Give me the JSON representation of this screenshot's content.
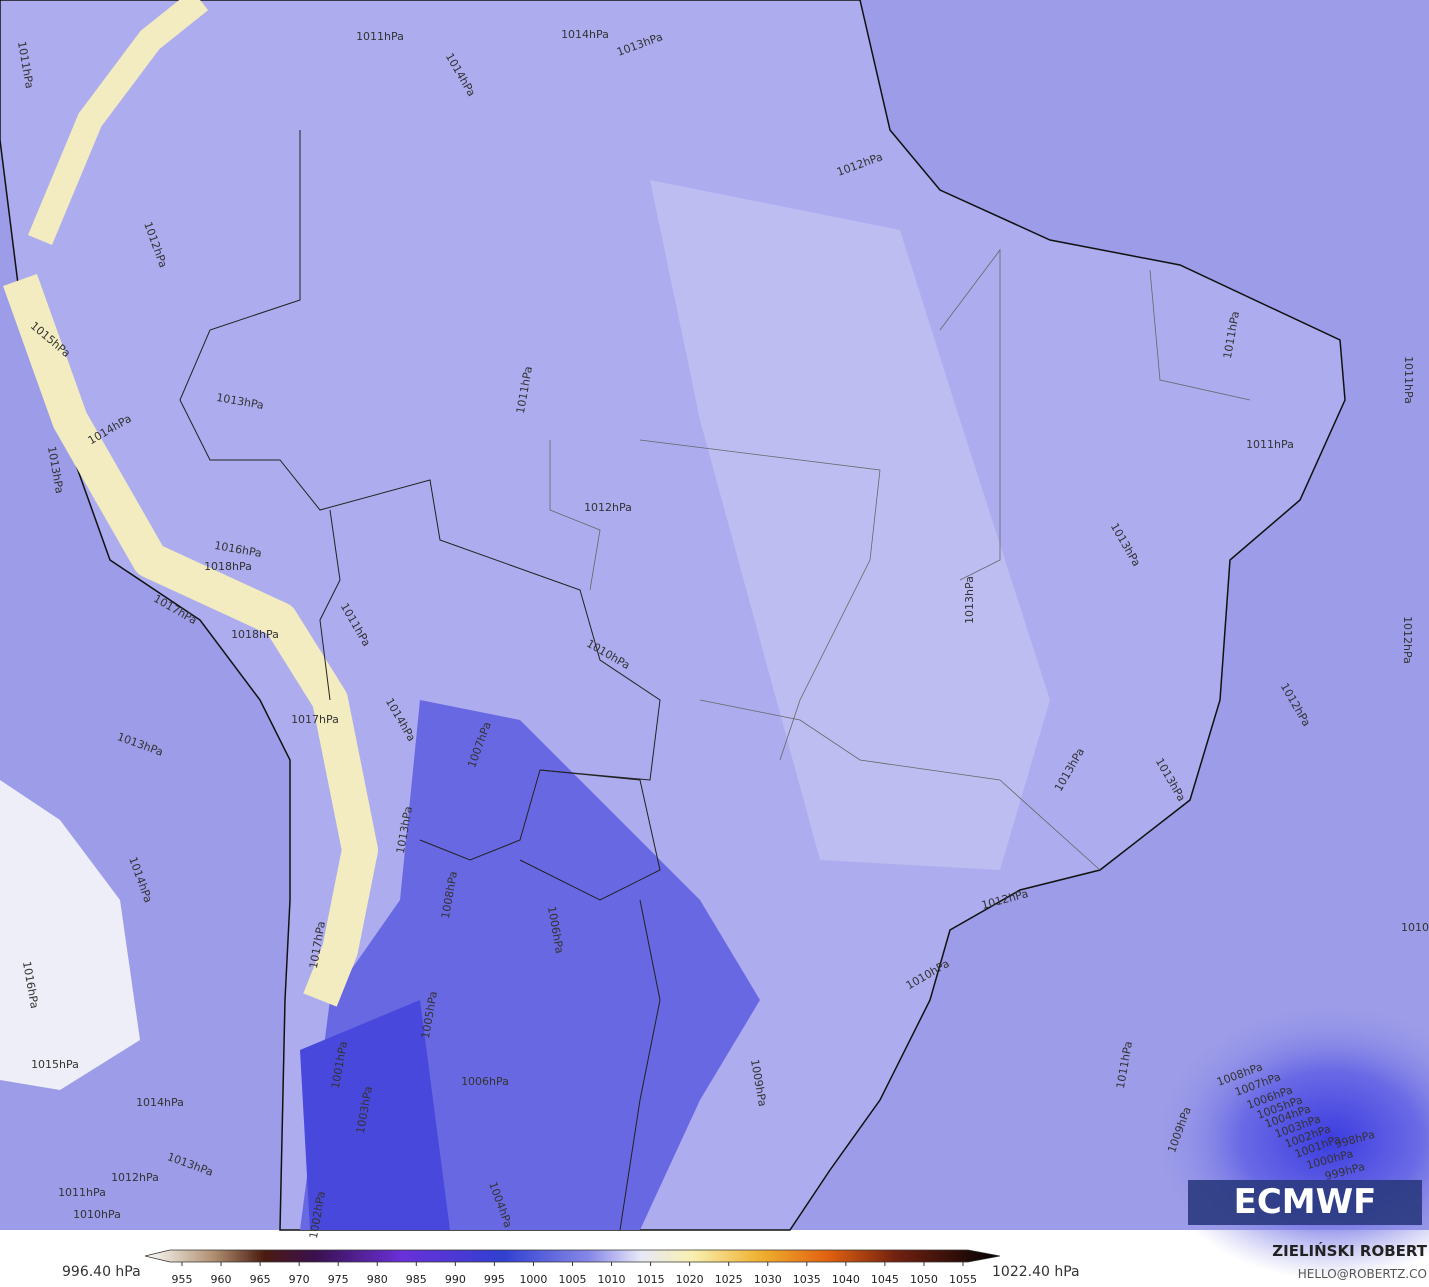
{
  "isobar_labels": [
    "1011hPa",
    "1014hPa",
    "1013hPa",
    "1014hPa",
    "1011hPa",
    "1012hPa",
    "1012hPa",
    "1013hPa",
    "1011hPa",
    "1015hPa",
    "1014hPa",
    "1013hPa",
    "1016hPa",
    "1018hPa",
    "1017hPa",
    "1018hPa",
    "1012hPa",
    "1011hPa",
    "1011hPa",
    "1011hPa",
    "1013hPa",
    "1013hPa",
    "1010hPa",
    "1011hPa",
    "1014hPa",
    "1017hPa",
    "1007hPa",
    "1013hPa",
    "1012hPa",
    "1012hPa",
    "1013hPa",
    "1013hPa",
    "1013hPa",
    "1014hPa",
    "1008hPa",
    "1006hPa",
    "1017hPa",
    "1012hPa",
    "1016hPa",
    "1010hPa",
    "1005hPa",
    "1015hPa",
    "1006hPa",
    "1009hPa",
    "1011hPa",
    "1014hPa",
    "1013hPa",
    "1012hPa",
    "1011hPa",
    "1010hPa",
    "1004hPa",
    "1003hPa",
    "1001hPa",
    "1002hPa",
    "1009hPa",
    "1008hPa",
    "1007hPa",
    "1006hPa",
    "1005hPa",
    "1004hPa",
    "1003hPa",
    "1002hPa",
    "1001hPa",
    "1000hPa",
    "999hPa",
    "998hPa",
    "1010"
  ],
  "colorbar": {
    "min_label": "996.40 hPa",
    "max_label": "1022.40 hPa",
    "ticks": [
      955,
      960,
      965,
      970,
      975,
      980,
      985,
      990,
      995,
      1000,
      1005,
      1010,
      1015,
      1020,
      1025,
      1030,
      1035,
      1040,
      1045,
      1050,
      1055
    ]
  },
  "credits": {
    "author": "ZIELIŃSKI ROBERT",
    "contact": "HELLO@ROBERTZ.CO"
  },
  "logo": "ECMWF"
}
